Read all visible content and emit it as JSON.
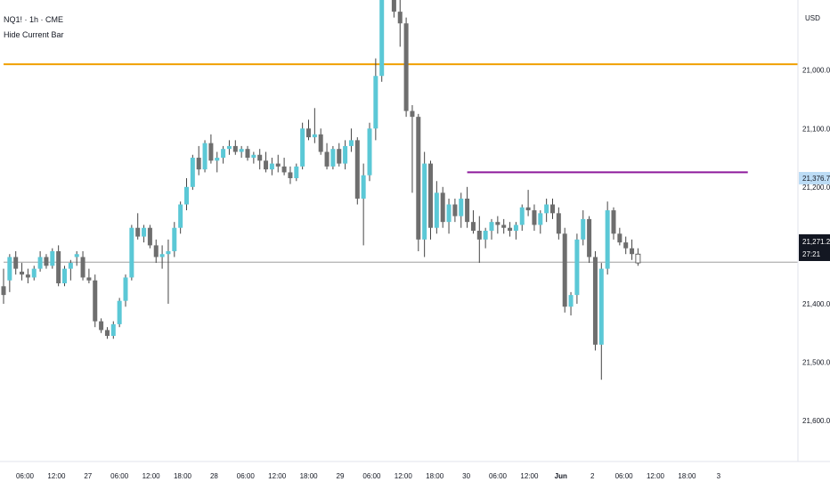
{
  "legend": {
    "symbol": "NQ1! · 1h · CME",
    "indicator": "Hide Current Bar"
  },
  "price_axis": {
    "currency": "USD",
    "tick_labels": [
      "21,600.00",
      "21,500.00",
      "21,400.00",
      "21,300.00",
      "21,200.00",
      "21,100.00",
      "21,000.00"
    ],
    "marker_highlight": "21,376.75",
    "marker_last_price": "21,271.25",
    "marker_countdown": "27:21"
  },
  "time_axis": {
    "labels": [
      "06:00",
      "12:00",
      "27",
      "06:00",
      "12:00",
      "18:00",
      "28",
      "06:00",
      "12:00",
      "18:00",
      "29",
      "06:00",
      "12:00",
      "18:00",
      "30",
      "06:00",
      "12:00",
      "Jun",
      "2",
      "06:00",
      "12:00",
      "18:00",
      "3"
    ],
    "bold_labels": [
      "Jun"
    ]
  },
  "colors": {
    "up": "#5bc8d6",
    "down": "#6e6e6e",
    "wick": "#444444",
    "orange_line": "#f0a000",
    "purple_line": "#8e1a9c",
    "last_price_line": "#9e9e9e",
    "highlight_marker": "#bcdcf5",
    "last_price_marker": "#131722"
  },
  "chart_data": {
    "type": "candlestick",
    "title": "NQ1! · 1h · CME",
    "ylabel": "USD",
    "ylim": [
      20930,
      21720
    ],
    "yticks": [
      21000,
      21100,
      21200,
      21300,
      21400,
      21500,
      21600
    ],
    "horizontal_lines": [
      {
        "name": "orange level",
        "price": 21610,
        "from_bar": 0,
        "to_bar": 999
      },
      {
        "name": "purple level",
        "price": 21425,
        "from_bar": 76,
        "to_bar": 122
      },
      {
        "name": "last price",
        "price": 21271.25,
        "from_bar": 0,
        "to_bar": 999
      }
    ],
    "candles": [
      [
        21230,
        21260,
        21200,
        21215
      ],
      [
        21240,
        21285,
        21220,
        21280
      ],
      [
        21280,
        21290,
        21250,
        21260
      ],
      [
        21255,
        21270,
        21240,
        21250
      ],
      [
        21250,
        21260,
        21235,
        21245
      ],
      [
        21245,
        21265,
        21240,
        21260
      ],
      [
        21260,
        21290,
        21255,
        21280
      ],
      [
        21280,
        21285,
        21260,
        21265
      ],
      [
        21265,
        21295,
        21260,
        21290
      ],
      [
        21290,
        21300,
        21230,
        21235
      ],
      [
        21235,
        21265,
        21230,
        21260
      ],
      [
        21260,
        21275,
        21240,
        21270
      ],
      [
        21280,
        21290,
        21265,
        21285
      ],
      [
        21280,
        21290,
        21240,
        21245
      ],
      [
        21245,
        21260,
        21235,
        21240
      ],
      [
        21240,
        21250,
        21160,
        21170
      ],
      [
        21170,
        21175,
        21150,
        21155
      ],
      [
        21155,
        21160,
        21140,
        21145
      ],
      [
        21145,
        21170,
        21140,
        21165
      ],
      [
        21165,
        21210,
        21160,
        21205
      ],
      [
        21205,
        21250,
        21195,
        21245
      ],
      [
        21245,
        21335,
        21240,
        21330
      ],
      [
        21330,
        21355,
        21310,
        21315
      ],
      [
        21315,
        21335,
        21305,
        21330
      ],
      [
        21330,
        21335,
        21295,
        21300
      ],
      [
        21300,
        21310,
        21270,
        21280
      ],
      [
        21280,
        21300,
        21260,
        21285
      ],
      [
        21285,
        21310,
        21200,
        21290
      ],
      [
        21290,
        21340,
        21280,
        21330
      ],
      [
        21330,
        21375,
        21320,
        21370
      ],
      [
        21370,
        21415,
        21360,
        21400
      ],
      [
        21400,
        21455,
        21395,
        21450
      ],
      [
        21450,
        21470,
        21420,
        21430
      ],
      [
        21430,
        21480,
        21425,
        21475
      ],
      [
        21475,
        21490,
        21440,
        21445
      ],
      [
        21445,
        21460,
        21425,
        21450
      ],
      [
        21450,
        21470,
        21440,
        21465
      ],
      [
        21465,
        21480,
        21455,
        21470
      ],
      [
        21470,
        21480,
        21455,
        21460
      ],
      [
        21460,
        21470,
        21450,
        21465
      ],
      [
        21465,
        21470,
        21445,
        21450
      ],
      [
        21450,
        21460,
        21440,
        21455
      ],
      [
        21455,
        21465,
        21430,
        21445
      ],
      [
        21445,
        21460,
        21425,
        21430
      ],
      [
        21430,
        21450,
        21420,
        21440
      ],
      [
        21440,
        21455,
        21425,
        21435
      ],
      [
        21435,
        21450,
        21420,
        21425
      ],
      [
        21425,
        21435,
        21405,
        21415
      ],
      [
        21415,
        21440,
        21410,
        21435
      ],
      [
        21435,
        21510,
        21430,
        21500
      ],
      [
        21500,
        21515,
        21480,
        21485
      ],
      [
        21485,
        21535,
        21475,
        21490
      ],
      [
        21490,
        21500,
        21455,
        21460
      ],
      [
        21460,
        21475,
        21430,
        21435
      ],
      [
        21435,
        21470,
        21430,
        21465
      ],
      [
        21465,
        21475,
        21435,
        21440
      ],
      [
        21440,
        21480,
        21430,
        21470
      ],
      [
        21470,
        21500,
        21460,
        21480
      ],
      [
        21480,
        21485,
        21370,
        21380
      ],
      [
        21380,
        21440,
        21300,
        21420
      ],
      [
        21420,
        21510,
        21410,
        21500
      ],
      [
        21500,
        21620,
        21480,
        21590
      ],
      [
        21590,
        21760,
        21580,
        21740
      ],
      [
        21760,
        21790,
        21730,
        21750
      ],
      [
        21750,
        21770,
        21690,
        21700
      ],
      [
        21700,
        21720,
        21640,
        21680
      ],
      [
        21680,
        21690,
        21520,
        21530
      ],
      [
        21530,
        21540,
        21390,
        21520
      ],
      [
        21520,
        21525,
        21290,
        21310
      ],
      [
        21310,
        21460,
        21280,
        21440
      ],
      [
        21440,
        21445,
        21310,
        21330
      ],
      [
        21330,
        21410,
        21320,
        21390
      ],
      [
        21390,
        21400,
        21330,
        21340
      ],
      [
        21340,
        21380,
        21320,
        21370
      ],
      [
        21370,
        21380,
        21340,
        21350
      ],
      [
        21350,
        21390,
        21330,
        21380
      ],
      [
        21380,
        21400,
        21330,
        21340
      ],
      [
        21340,
        21360,
        21320,
        21325
      ],
      [
        21325,
        21350,
        21270,
        21310
      ],
      [
        21310,
        21330,
        21295,
        21325
      ],
      [
        21325,
        21345,
        21310,
        21340
      ],
      [
        21340,
        21350,
        21320,
        21335
      ],
      [
        21335,
        21345,
        21320,
        21330
      ],
      [
        21330,
        21340,
        21315,
        21325
      ],
      [
        21325,
        21340,
        21310,
        21335
      ],
      [
        21335,
        21370,
        21325,
        21365
      ],
      [
        21365,
        21395,
        21350,
        21360
      ],
      [
        21360,
        21370,
        21325,
        21335
      ],
      [
        21335,
        21360,
        21320,
        21355
      ],
      [
        21355,
        21380,
        21340,
        21370
      ],
      [
        21370,
        21380,
        21345,
        21355
      ],
      [
        21355,
        21365,
        21310,
        21320
      ],
      [
        21320,
        21330,
        21185,
        21195
      ],
      [
        21195,
        21220,
        21180,
        21215
      ],
      [
        21215,
        21320,
        21200,
        21310
      ],
      [
        21310,
        21360,
        21300,
        21345
      ],
      [
        21345,
        21350,
        21270,
        21280
      ],
      [
        21280,
        21290,
        21120,
        21130
      ],
      [
        21130,
        21270,
        21070,
        21260
      ],
      [
        21260,
        21375,
        21250,
        21360
      ],
      [
        21360,
        21365,
        21310,
        21320
      ],
      [
        21320,
        21330,
        21300,
        21305
      ],
      [
        21305,
        21315,
        21285,
        21295
      ],
      [
        21295,
        21310,
        21275,
        21285
      ],
      [
        21285,
        21295,
        21265,
        21270
      ]
    ]
  }
}
